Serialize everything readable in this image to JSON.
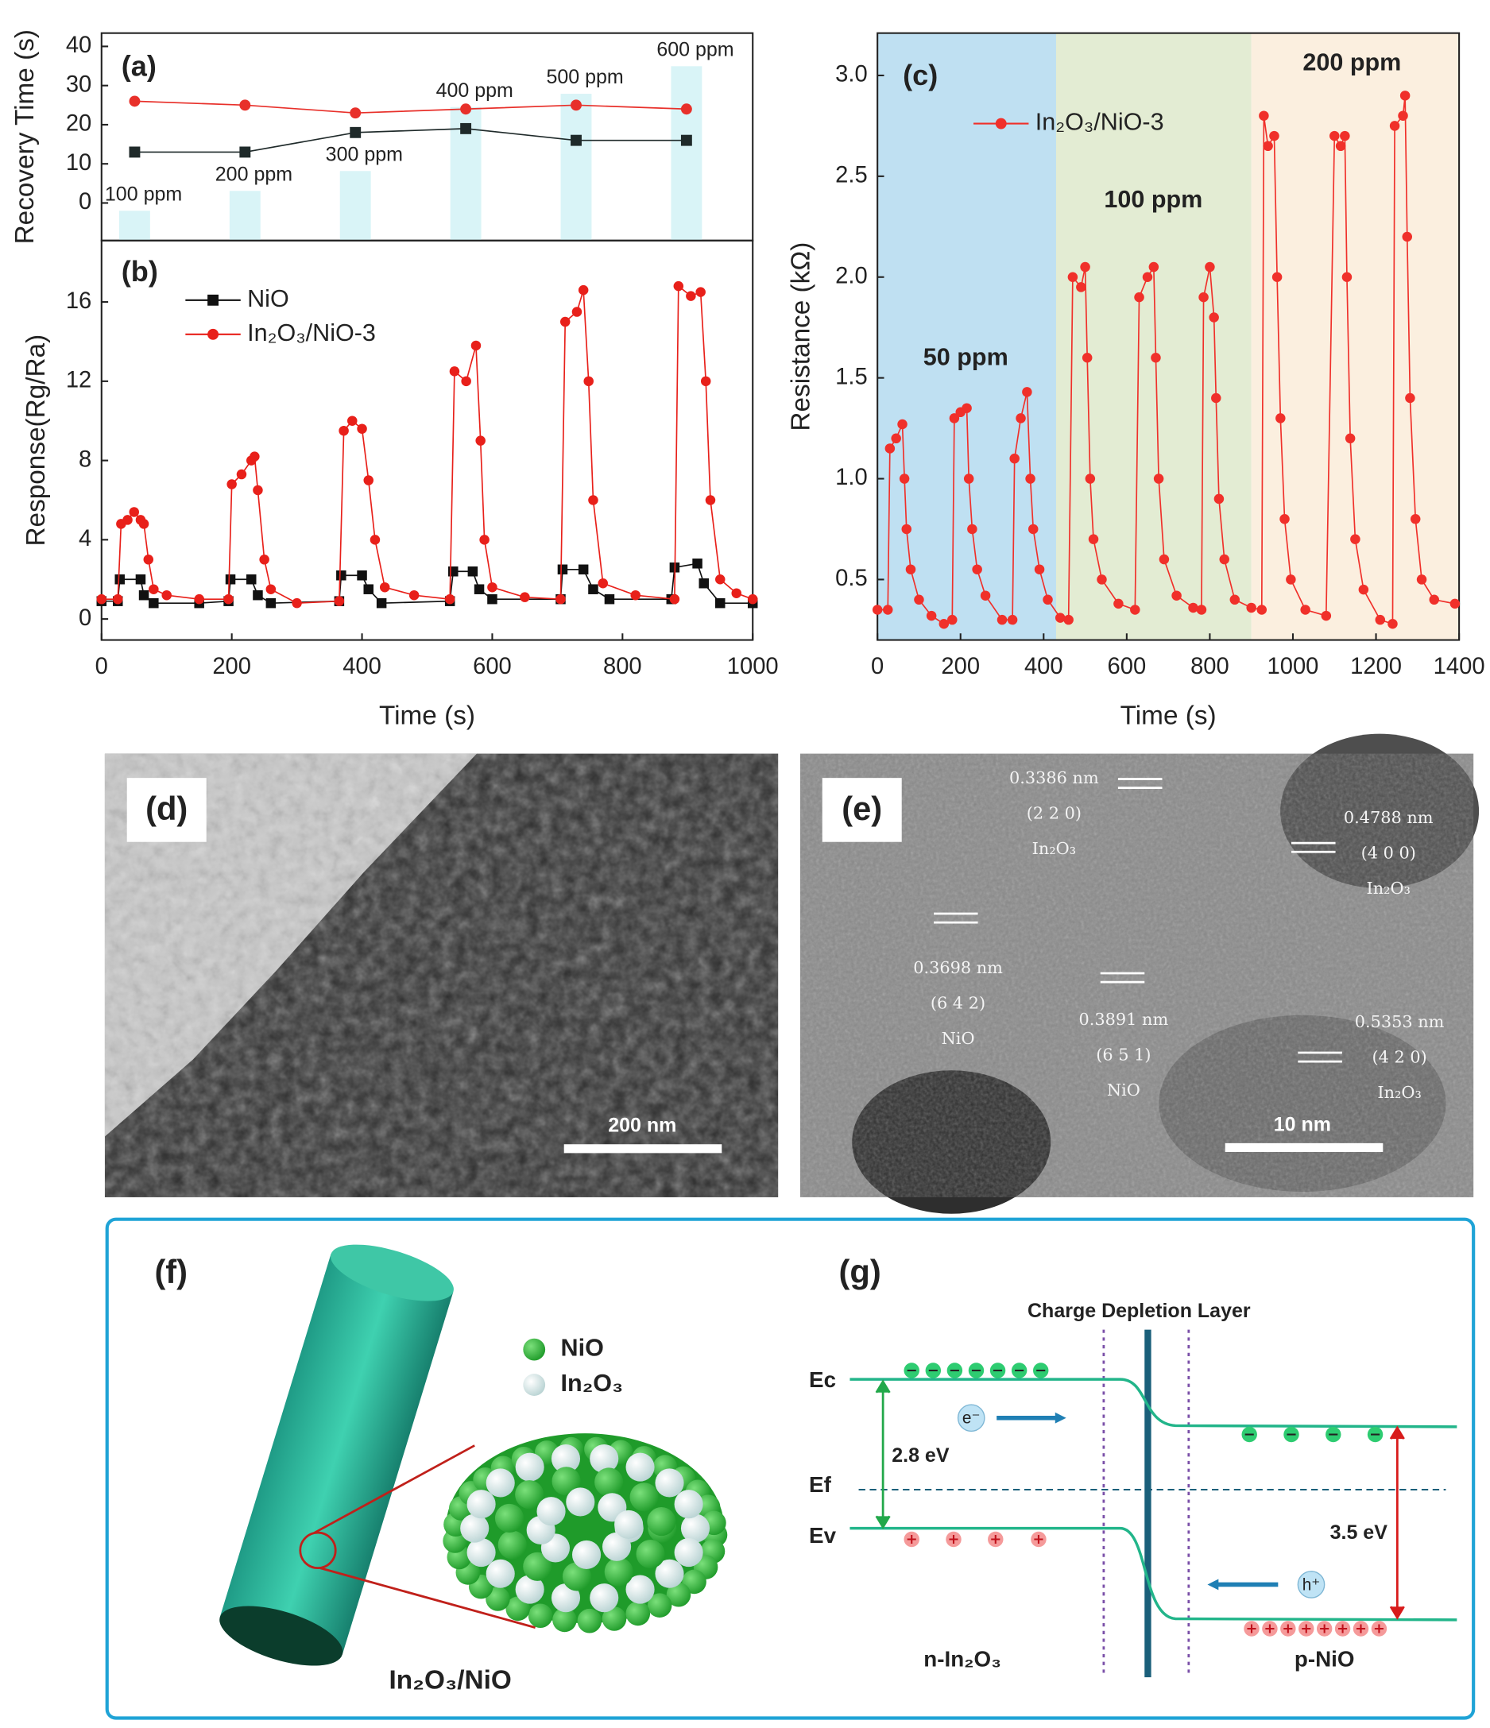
{
  "chart_data": [
    {
      "type": "line",
      "panel_label": "(a)",
      "ylabel": "Recovery Time (s)",
      "categories": [
        "100 ppm",
        "200 ppm",
        "300 ppm",
        "400 ppm",
        "500 ppm",
        "600 ppm"
      ],
      "ylim": [
        -9.6,
        43.4
      ],
      "yticks": [
        0,
        10,
        20,
        30,
        40
      ],
      "series": [
        {
          "color": "#e8302a",
          "marker": "circle",
          "values": [
            26,
            25,
            23,
            24,
            25,
            24
          ]
        },
        {
          "color": "#1f2a2a",
          "marker": "square",
          "values": [
            13,
            13,
            18,
            19,
            16,
            16
          ]
        }
      ]
    },
    {
      "type": "line",
      "panel_label": "(b)",
      "xlabel": "Time (s)",
      "ylabel": "Response(Rg/Ra)",
      "xlim": [
        0,
        1000
      ],
      "xticks": [
        0,
        200,
        400,
        600,
        800,
        1000
      ],
      "ylim": [
        -1.06,
        19.1
      ],
      "yticks": [
        0,
        4,
        8,
        12,
        16
      ],
      "series": [
        {
          "name": "NiO",
          "color": "#111111",
          "marker": "square",
          "x": [
            0,
            25,
            28,
            60,
            65,
            80,
            150,
            195,
            198,
            230,
            240,
            260,
            365,
            368,
            400,
            410,
            430,
            535,
            540,
            570,
            580,
            600,
            705,
            708,
            740,
            755,
            780,
            875,
            880,
            915,
            925,
            950,
            1000
          ],
          "values": [
            0.9,
            0.9,
            2.0,
            2.0,
            1.2,
            0.8,
            0.8,
            0.9,
            2.0,
            2.0,
            1.2,
            0.8,
            0.9,
            2.2,
            2.2,
            1.5,
            0.8,
            0.9,
            2.4,
            2.4,
            1.5,
            1.0,
            1.0,
            2.5,
            2.5,
            1.5,
            1.0,
            1.0,
            2.6,
            2.8,
            1.8,
            0.8,
            0.8
          ]
        },
        {
          "name": "In₂O₃/NiO-3",
          "color": "#e8201a",
          "marker": "circle",
          "x": [
            0,
            25,
            30,
            40,
            50,
            60,
            65,
            72,
            80,
            100,
            150,
            195,
            200,
            215,
            230,
            235,
            240,
            250,
            260,
            300,
            365,
            372,
            385,
            400,
            410,
            420,
            435,
            480,
            535,
            542,
            560,
            575,
            582,
            588,
            600,
            650,
            705,
            712,
            730,
            740,
            748,
            755,
            770,
            820,
            880,
            886,
            905,
            920,
            928,
            935,
            950,
            975,
            1000
          ],
          "values": [
            1.0,
            1.0,
            4.8,
            5.0,
            5.4,
            5.0,
            4.8,
            3.0,
            1.5,
            1.2,
            1.0,
            1.0,
            6.8,
            7.3,
            8.0,
            8.2,
            6.5,
            3.0,
            1.5,
            0.8,
            0.9,
            9.5,
            10.0,
            9.6,
            7.0,
            4.0,
            1.6,
            1.2,
            1.0,
            12.5,
            12.0,
            13.8,
            9.0,
            4.0,
            1.6,
            1.1,
            1.0,
            15.0,
            15.5,
            16.6,
            12.0,
            6.0,
            1.8,
            1.2,
            1.0,
            16.8,
            16.3,
            16.5,
            12.0,
            6.0,
            2.0,
            1.3,
            1.0
          ]
        }
      ]
    },
    {
      "type": "line",
      "panel_label": "(c)",
      "xlabel": "Time (s)",
      "ylabel": "Resistance (kΩ)",
      "xlim": [
        0,
        1400
      ],
      "xticks": [
        0,
        200,
        400,
        600,
        800,
        1000,
        1200,
        1400
      ],
      "ylim": [
        0.2,
        3.21
      ],
      "yticks": [
        0.5,
        {
          "value": 1,
          "label": "1.0"
        },
        1.5,
        {
          "value": 2,
          "label": "2.0"
        },
        2.5,
        {
          "value": 3,
          "label": "3.0"
        }
      ],
      "regions": [
        {
          "label": "50 ppm",
          "start": 0,
          "end": 430,
          "color": "#bfe0f2"
        },
        {
          "label": "100 ppm",
          "start": 430,
          "end": 900,
          "color": "#e3ecd3"
        },
        {
          "label": "200 ppm",
          "start": 900,
          "end": 1400,
          "color": "#fbefdf"
        }
      ],
      "series": [
        {
          "name": "In₂O₃/NiO-3",
          "color": "#f0302a",
          "marker": "circle",
          "x": [
            0,
            25,
            30,
            45,
            60,
            65,
            70,
            80,
            100,
            130,
            160,
            180,
            185,
            200,
            215,
            220,
            228,
            240,
            260,
            300,
            325,
            330,
            345,
            360,
            368,
            375,
            390,
            410,
            440,
            460,
            470,
            490,
            500,
            505,
            512,
            520,
            540,
            580,
            620,
            630,
            650,
            665,
            670,
            677,
            690,
            720,
            760,
            780,
            785,
            800,
            810,
            815,
            822,
            835,
            860,
            900,
            925,
            930,
            940,
            955,
            962,
            970,
            980,
            995,
            1030,
            1080,
            1100,
            1115,
            1125,
            1130,
            1138,
            1150,
            1170,
            1210,
            1240,
            1245,
            1265,
            1270,
            1275,
            1282,
            1295,
            1310,
            1340,
            1390
          ],
          "values": [
            0.35,
            0.35,
            1.15,
            1.2,
            1.27,
            1.0,
            0.75,
            0.55,
            0.4,
            0.32,
            0.28,
            0.3,
            1.3,
            1.33,
            1.35,
            1.0,
            0.75,
            0.55,
            0.42,
            0.3,
            0.3,
            1.1,
            1.3,
            1.43,
            1.0,
            0.75,
            0.55,
            0.4,
            0.31,
            0.3,
            2.0,
            1.95,
            2.05,
            1.6,
            1.0,
            0.7,
            0.5,
            0.38,
            0.35,
            1.9,
            2.0,
            2.05,
            1.6,
            1.0,
            0.6,
            0.42,
            0.36,
            0.35,
            1.9,
            2.05,
            1.8,
            1.4,
            0.9,
            0.6,
            0.4,
            0.36,
            0.35,
            2.8,
            2.65,
            2.7,
            2.0,
            1.3,
            0.8,
            0.5,
            0.35,
            0.32,
            2.7,
            2.65,
            2.7,
            2.0,
            1.2,
            0.7,
            0.45,
            0.3,
            0.28,
            2.75,
            2.8,
            2.9,
            2.2,
            1.4,
            0.8,
            0.5,
            0.4,
            0.38
          ]
        }
      ]
    }
  ],
  "panels": {
    "d": {
      "label": "(d)",
      "scale_bar": "200 nm"
    },
    "e": {
      "label": "(e)",
      "scale_bar": "10 nm",
      "fringes": [
        {
          "spacing": "0.3386 nm",
          "plane": "(2 2 0)",
          "phase": "In₂O₃"
        },
        {
          "spacing": "0.4788 nm",
          "plane": "(4 0 0)",
          "phase": "In₂O₃"
        },
        {
          "spacing": "0.3698 nm",
          "plane": "(6 4 2)",
          "phase": "NiO"
        },
        {
          "spacing": "0.3891 nm",
          "plane": "(6 5 1)",
          "phase": "NiO"
        },
        {
          "spacing": "0.5353 nm",
          "plane": "(4 2 0)",
          "phase": "In₂O₃"
        }
      ]
    },
    "f": {
      "label": "(f)",
      "legend": [
        "NiO",
        "In₂O₃"
      ],
      "caption": "In₂O₃/NiO"
    },
    "g": {
      "label": "(g)",
      "title": "Charge Depletion Layer",
      "levels": [
        "Ec",
        "Ef",
        "Ev"
      ],
      "gap_n": "2.8 eV",
      "gap_p": "3.5 eV",
      "electron": "e⁻",
      "hole": "h⁺",
      "n_side": "n-In₂O₃",
      "p_side": "p-NiO"
    }
  }
}
